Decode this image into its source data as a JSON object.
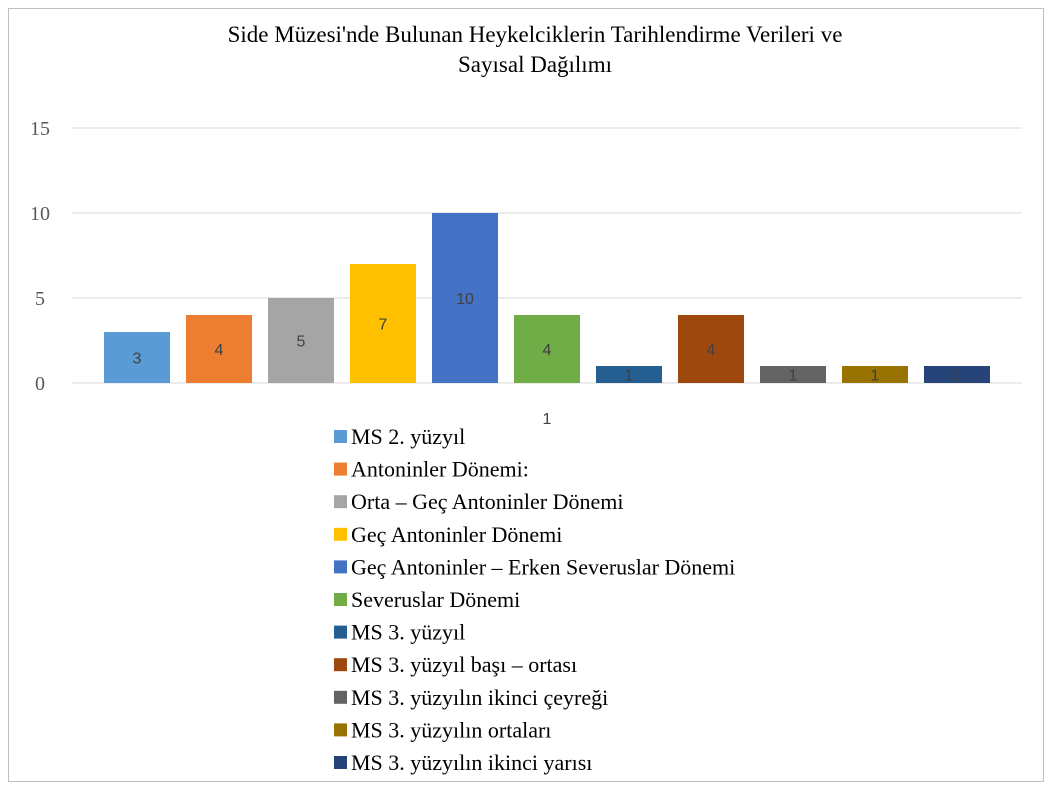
{
  "chart_data": {
    "type": "bar",
    "title": "Side Müzesi'nde Bulunan Heykelciklerin Tarihlendirme Verileri ve Sayısal Dağılımı",
    "categories": [
      "1"
    ],
    "series": [
      {
        "name": "MS 2. yüzyıl",
        "color": "#5b9bd5",
        "values": [
          3
        ]
      },
      {
        "name": "Antoninler Dönemi:",
        "color": "#ed7d31",
        "values": [
          4
        ]
      },
      {
        "name": "Orta – Geç Antoninler Dönemi",
        "color": "#a5a5a5",
        "values": [
          5
        ]
      },
      {
        "name": "Geç Antoninler Dönemi",
        "color": "#ffc000",
        "values": [
          7
        ]
      },
      {
        "name": "Geç Antoninler – Erken Severuslar Dönemi",
        "color": "#4472c4",
        "values": [
          10
        ]
      },
      {
        "name": "Severuslar Dönemi",
        "color": "#70ad47",
        "values": [
          4
        ]
      },
      {
        "name": "MS 3. yüzyıl",
        "color": "#255e91",
        "values": [
          1
        ]
      },
      {
        "name": "MS 3. yüzyıl başı – ortası",
        "color": "#9e480e",
        "values": [
          4
        ]
      },
      {
        "name": "MS 3. yüzyılın ikinci çeyreği",
        "color": "#636363",
        "values": [
          1
        ]
      },
      {
        "name": "MS 3. yüzyılın ortaları",
        "color": "#997300",
        "values": [
          1
        ]
      },
      {
        "name": "MS 3. yüzyılın ikinci yarısı",
        "color": "#264478",
        "values": [
          1
        ]
      }
    ],
    "ylim": [
      0,
      15
    ],
    "yticks": [
      0,
      5,
      10,
      15
    ],
    "grid": true,
    "legend": "bottom"
  }
}
